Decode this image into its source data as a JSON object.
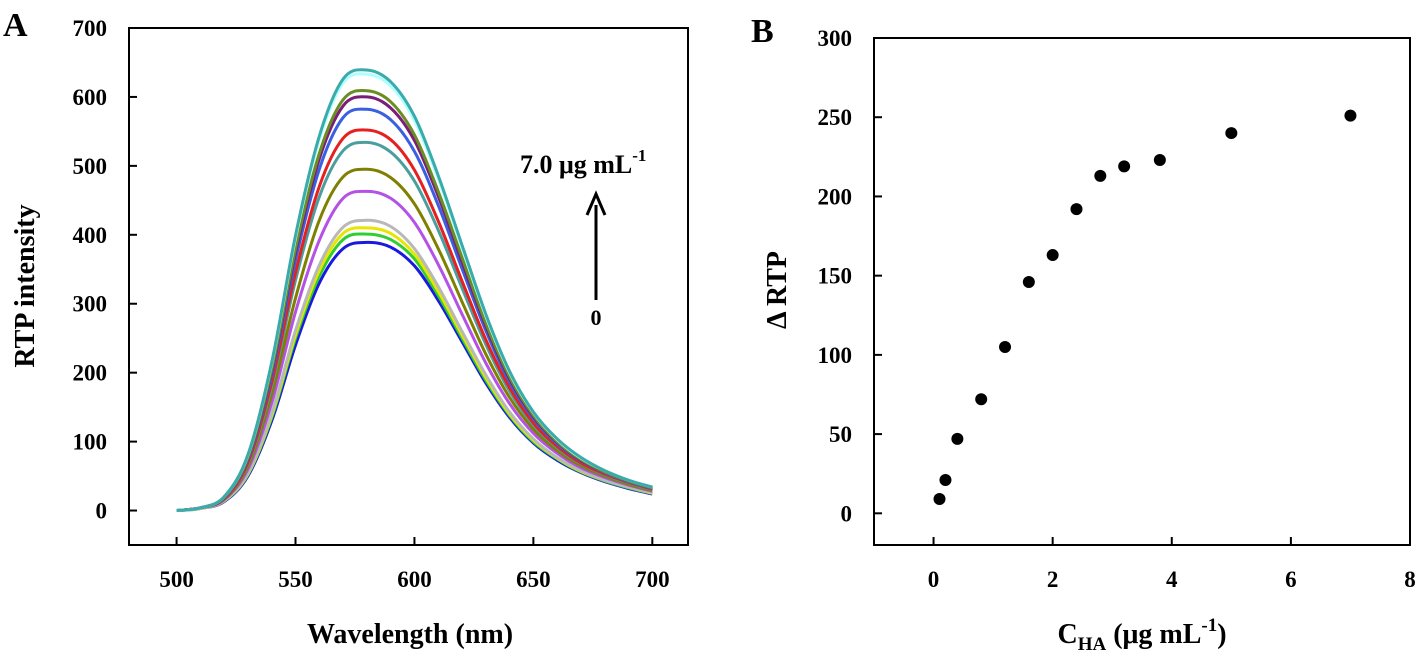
{
  "chart_data": [
    {
      "panel_label": "A",
      "type": "line",
      "xlabel": "Wavelength (nm)",
      "ylabel": "RTP intensity",
      "xlim": [
        480,
        715
      ],
      "ylim": [
        -50,
        700
      ],
      "xticks": [
        500,
        550,
        600,
        650,
        700
      ],
      "yticks": [
        0,
        100,
        200,
        300,
        400,
        500,
        600,
        700
      ],
      "grid": false,
      "x": [
        500,
        510,
        520,
        530,
        540,
        550,
        560,
        570,
        580,
        590,
        600,
        610,
        620,
        630,
        640,
        650,
        660,
        670,
        680,
        690,
        700
      ],
      "series": [
        {
          "color": "#1a1adf",
          "values": [
            0,
            3,
            13,
            50,
            130,
            240,
            330,
            380,
            389,
            382,
            355,
            305,
            245,
            185,
            135,
            98,
            73,
            55,
            42,
            32,
            24
          ]
        },
        {
          "color": "#32cd32",
          "values": [
            0,
            3,
            14,
            52,
            135,
            250,
            340,
            393,
            401,
            393,
            365,
            312,
            250,
            189,
            138,
            100,
            75,
            56,
            43,
            33,
            25
          ]
        },
        {
          "color": "#e6e600",
          "values": [
            0,
            3,
            14,
            53,
            138,
            255,
            348,
            402,
            410,
            402,
            372,
            318,
            255,
            193,
            140,
            102,
            76,
            57,
            44,
            34,
            25
          ]
        },
        {
          "color": "#b8b8b8",
          "values": [
            0,
            3,
            14,
            54,
            141,
            261,
            356,
            411,
            421,
            412,
            380,
            325,
            260,
            197,
            143,
            104,
            77,
            58,
            44,
            34,
            26
          ]
        },
        {
          "color": "#b452e6",
          "values": [
            0,
            4,
            16,
            60,
            156,
            288,
            392,
            453,
            463,
            453,
            418,
            357,
            285,
            214,
            155,
            112,
            83,
            62,
            48,
            37,
            28
          ]
        },
        {
          "color": "#808000",
          "values": [
            0,
            4,
            16,
            64,
            168,
            308,
            421,
            484,
            495,
            483,
            445,
            380,
            303,
            227,
            164,
            118,
            87,
            65,
            50,
            38,
            29
          ]
        },
        {
          "color": "#4a9e9e",
          "values": [
            0,
            4,
            17,
            68,
            180,
            334,
            455,
            522,
            534,
            520,
            478,
            407,
            323,
            241,
            173,
            124,
            91,
            68,
            52,
            40,
            30
          ]
        },
        {
          "color": "#e62020",
          "values": [
            0,
            4,
            17,
            70,
            186,
            345,
            470,
            540,
            552,
            538,
            494,
            420,
            333,
            248,
            178,
            127,
            93,
            69,
            53,
            41,
            31
          ]
        },
        {
          "color": "#3a5fe0",
          "values": [
            0,
            4,
            18,
            74,
            196,
            363,
            495,
            570,
            582,
            567,
            521,
            443,
            351,
            261,
            186,
            133,
            97,
            72,
            55,
            42,
            32
          ]
        },
        {
          "color": "#7a1e7a",
          "values": [
            0,
            4,
            19,
            76,
            202,
            374,
            510,
            587,
            600,
            584,
            537,
            456,
            361,
            268,
            191,
            136,
            99,
            73,
            56,
            43,
            33
          ]
        },
        {
          "color": "#6b8e23",
          "values": [
            0,
            4,
            19,
            77,
            205,
            380,
            518,
            596,
            609,
            593,
            545,
            463,
            367,
            272,
            194,
            138,
            100,
            74,
            56,
            43,
            33
          ]
        },
        {
          "color": "#b0ffff",
          "values": [
            0,
            4,
            20,
            80,
            213,
            395,
            538,
            620,
            633,
            616,
            566,
            481,
            381,
            282,
            200,
            142,
            103,
            76,
            58,
            44,
            34
          ]
        },
        {
          "color": "#3aaaaa",
          "values": [
            0,
            4,
            20,
            81,
            215,
            399,
            543,
            626,
            639,
            622,
            572,
            486,
            385,
            285,
            202,
            143,
            104,
            77,
            58,
            44,
            34
          ]
        }
      ],
      "annotations": {
        "top_label_main": "7.0 μg mL",
        "top_label_sup": "-1",
        "bottom_label": "0"
      }
    },
    {
      "panel_label": "B",
      "type": "scatter",
      "xlabel_main": "C",
      "xlabel_sub": "HA",
      "xlabel_rest": " (μg mL",
      "xlabel_sup": "-1",
      "xlabel_end": ")",
      "ylabel": "Δ RTP",
      "xlim": [
        -1,
        8
      ],
      "ylim": [
        -20,
        300
      ],
      "xticks": [
        0,
        2,
        4,
        6,
        8
      ],
      "yticks": [
        0,
        50,
        100,
        150,
        200,
        250,
        300
      ],
      "grid": false,
      "marker_color": "#000000",
      "points": [
        {
          "x": 0.1,
          "y": 9
        },
        {
          "x": 0.2,
          "y": 21
        },
        {
          "x": 0.4,
          "y": 47
        },
        {
          "x": 0.8,
          "y": 72
        },
        {
          "x": 1.2,
          "y": 105
        },
        {
          "x": 1.6,
          "y": 146
        },
        {
          "x": 2.0,
          "y": 163
        },
        {
          "x": 2.4,
          "y": 192
        },
        {
          "x": 2.8,
          "y": 213
        },
        {
          "x": 3.2,
          "y": 219
        },
        {
          "x": 3.8,
          "y": 223
        },
        {
          "x": 5.0,
          "y": 240
        },
        {
          "x": 7.0,
          "y": 251
        }
      ]
    }
  ]
}
